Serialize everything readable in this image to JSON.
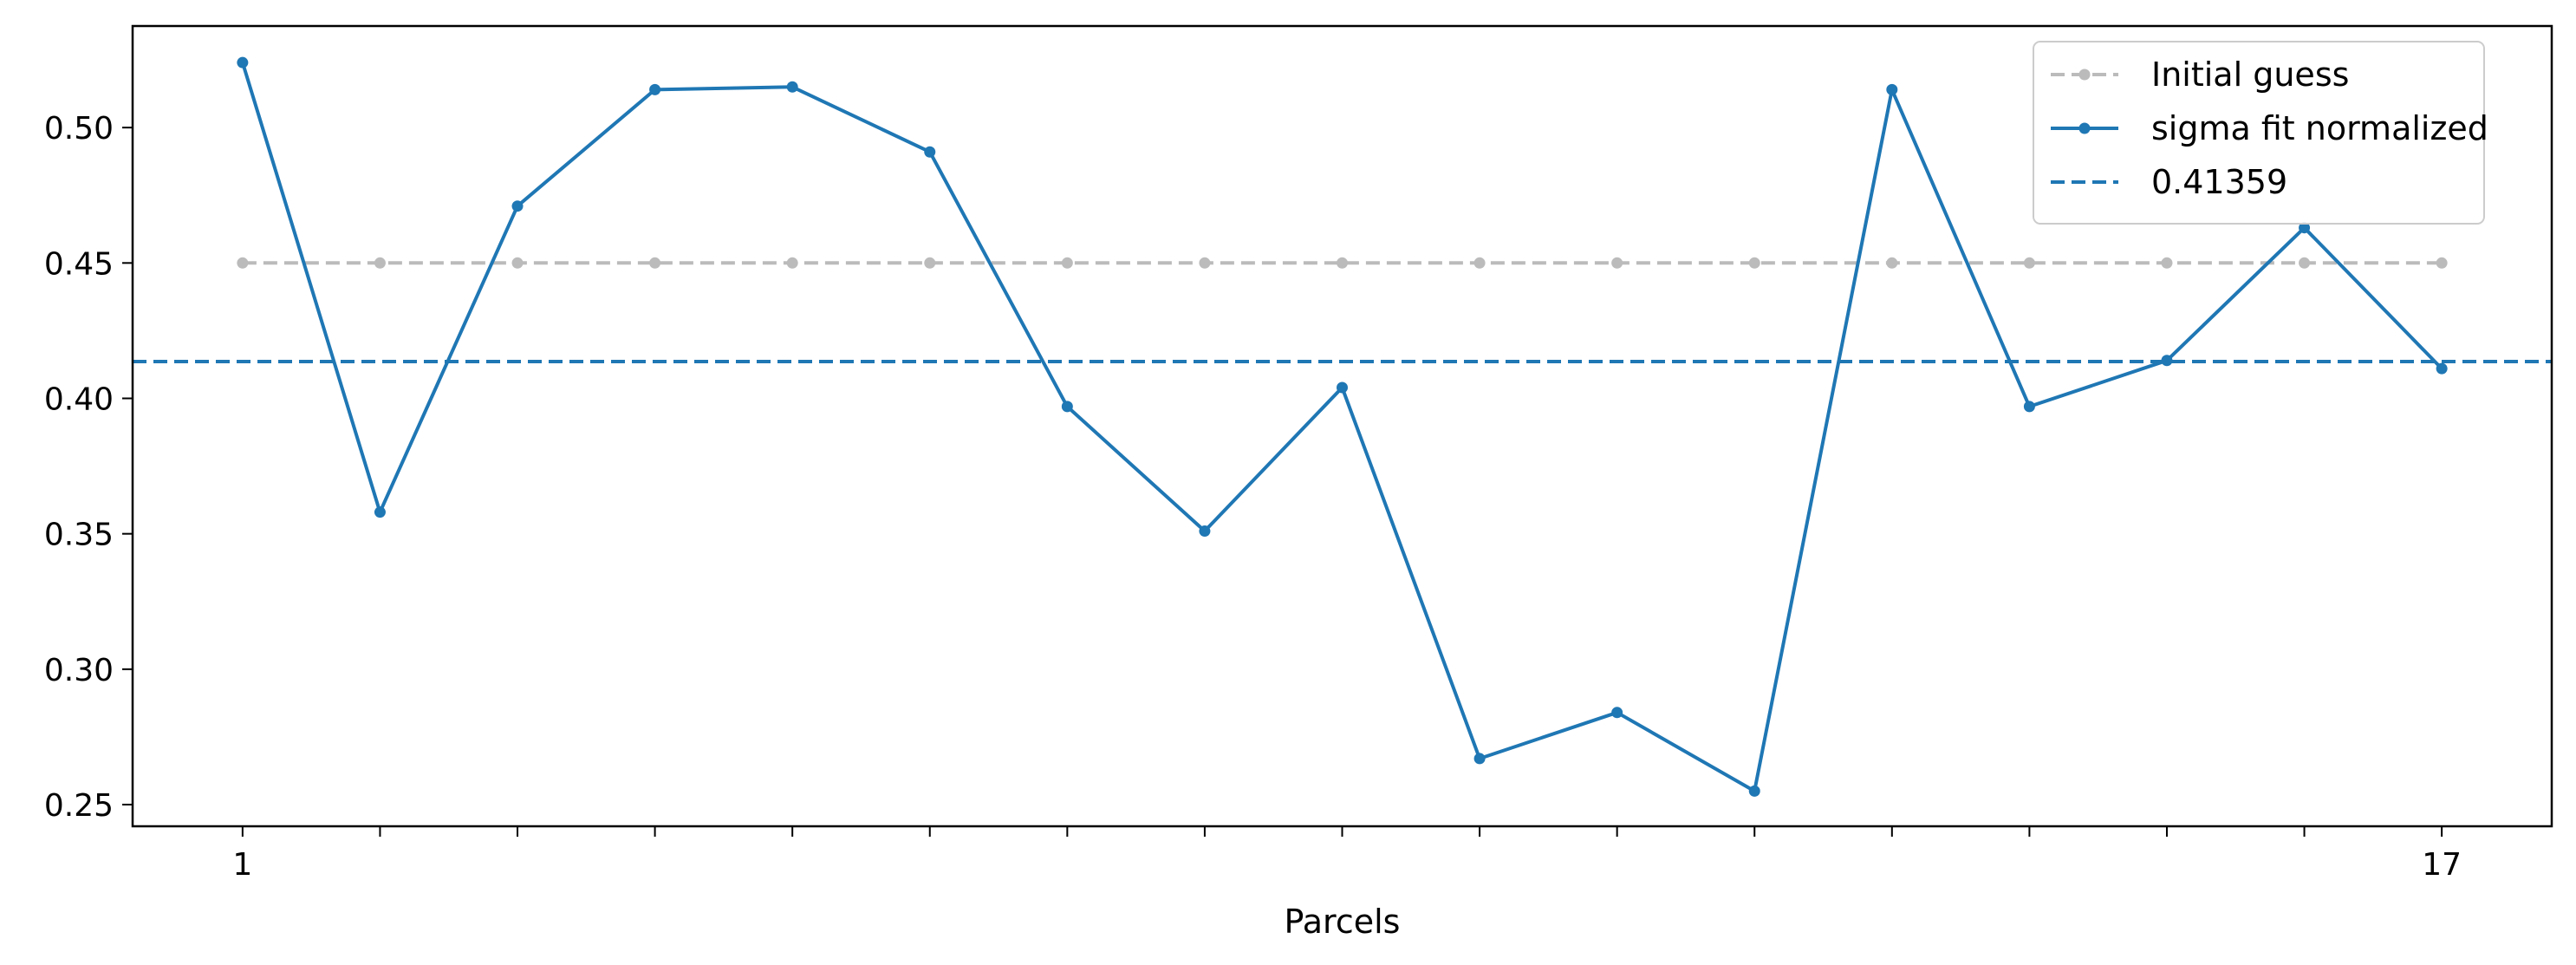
{
  "chart_data": {
    "type": "line",
    "title": "",
    "xlabel": "Parcels",
    "ylabel": "",
    "x": [
      1,
      2,
      3,
      4,
      5,
      6,
      7,
      8,
      9,
      10,
      11,
      12,
      13,
      14,
      15,
      16,
      17
    ],
    "xticks": [
      1,
      2,
      3,
      4,
      5,
      6,
      7,
      8,
      9,
      10,
      11,
      12,
      13,
      14,
      15,
      16,
      17
    ],
    "xtick_labels_shown": [
      "1",
      "17"
    ],
    "xlim": [
      0.2,
      17.8
    ],
    "ylim": [
      0.242,
      0.5375
    ],
    "yticks": [
      0.25,
      0.3,
      0.35,
      0.4,
      0.45,
      0.5
    ],
    "ytick_labels": [
      "0.25",
      "0.30",
      "0.35",
      "0.40",
      "0.45",
      "0.50"
    ],
    "grid": false,
    "legend_position": "upper right",
    "series": [
      {
        "name": "Initial guess",
        "style": "dashed-markers",
        "color": "#bbbbbb",
        "values": [
          0.45,
          0.45,
          0.45,
          0.45,
          0.45,
          0.45,
          0.45,
          0.45,
          0.45,
          0.45,
          0.45,
          0.45,
          0.45,
          0.45,
          0.45,
          0.45,
          0.45
        ]
      },
      {
        "name": "sigma fit normalized",
        "style": "solid-markers",
        "color": "#1f77b4",
        "values": [
          0.524,
          0.358,
          0.471,
          0.514,
          0.515,
          0.491,
          0.397,
          0.351,
          0.404,
          0.267,
          0.284,
          0.255,
          0.514,
          0.397,
          0.414,
          0.463,
          0.411
        ]
      }
    ],
    "reference_lines": [
      {
        "name": "0.41359",
        "y": 0.41359,
        "color": "#1f77b4",
        "style": "dashed"
      }
    ]
  }
}
